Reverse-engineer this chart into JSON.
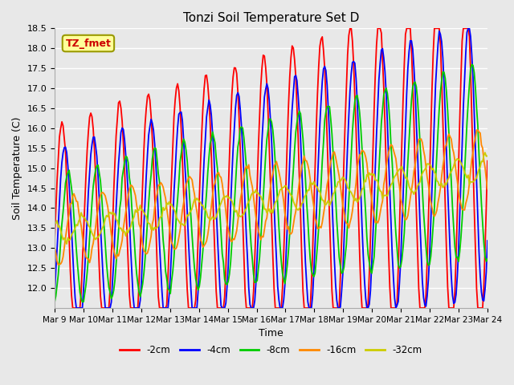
{
  "title": "Tonzi Soil Temperature Set D",
  "xlabel": "Time",
  "ylabel": "Soil Temperature (C)",
  "ylim": [
    11.5,
    18.5
  ],
  "yticks": [
    12.0,
    12.5,
    13.0,
    13.5,
    14.0,
    14.5,
    15.0,
    15.5,
    16.0,
    16.5,
    17.0,
    17.5,
    18.0,
    18.5
  ],
  "xtick_labels": [
    "Mar 9",
    "Mar 10",
    "Mar 11",
    "Mar 12",
    "Mar 13",
    "Mar 14",
    "Mar 15",
    "Mar 16",
    "Mar 17",
    "Mar 18",
    "Mar 19",
    "Mar 20",
    "Mar 21",
    "Mar 22",
    "Mar 23",
    "Mar 24"
  ],
  "n_days": 15,
  "points_per_day": 24,
  "legend_entries": [
    "-2cm",
    "-4cm",
    "-8cm",
    "-16cm",
    "-32cm"
  ],
  "line_colors": [
    "#ff0000",
    "#0000ff",
    "#00cc00",
    "#ff8800",
    "#cccc00"
  ],
  "line_widths": [
    1.3,
    1.3,
    1.3,
    1.3,
    1.3
  ],
  "bg_color": "#e8e8e8",
  "label_box_text": "TZ_fmet",
  "label_box_facecolor": "#ffff99",
  "label_box_edgecolor": "#999900",
  "label_box_textcolor": "#cc0000"
}
